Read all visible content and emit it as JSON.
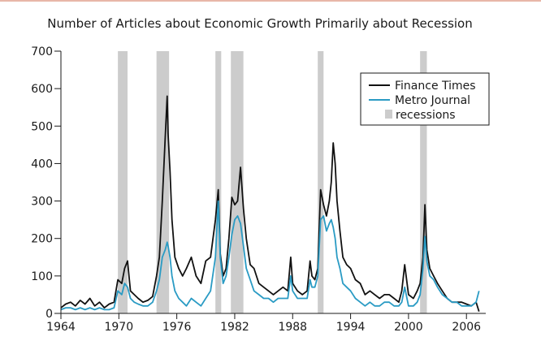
{
  "chart_data": {
    "type": "line",
    "title": "Number of Articles about Economic Growth Primarily about Recession",
    "xlabel": "",
    "ylabel": "",
    "xlim": [
      1964,
      2008
    ],
    "ylim": [
      0,
      700
    ],
    "x_ticks": [
      1964,
      1970,
      1976,
      1982,
      1988,
      1994,
      2000,
      2006
    ],
    "y_ticks": [
      0,
      100,
      200,
      300,
      400,
      500,
      600,
      700
    ],
    "grid": false,
    "legend_position": "top-right",
    "legend": [
      "Finance Times",
      "Metro Journal",
      "recessions"
    ],
    "recessions": [
      [
        1969.9,
        1970.9
      ],
      [
        1973.9,
        1975.2
      ],
      [
        1980.0,
        1980.6
      ],
      [
        1981.6,
        1982.9
      ],
      [
        1990.6,
        1991.2
      ],
      [
        2001.2,
        2001.9
      ]
    ],
    "recession_color": "#cccccc",
    "series": [
      {
        "name": "Finance Times",
        "color": "#111111",
        "x": [
          1964.0,
          1964.5,
          1965.0,
          1965.5,
          1966.0,
          1966.5,
          1967.0,
          1967.5,
          1968.0,
          1968.5,
          1969.0,
          1969.5,
          1969.9,
          1970.3,
          1970.6,
          1970.9,
          1971.2,
          1971.6,
          1972.0,
          1972.5,
          1973.0,
          1973.5,
          1973.9,
          1974.2,
          1974.5,
          1974.8,
          1975.0,
          1975.1,
          1975.3,
          1975.5,
          1975.8,
          1976.2,
          1976.6,
          1977.0,
          1977.5,
          1978.0,
          1978.5,
          1979.0,
          1979.5,
          1980.0,
          1980.3,
          1980.5,
          1980.8,
          1981.1,
          1981.4,
          1981.7,
          1982.0,
          1982.3,
          1982.6,
          1982.9,
          1983.2,
          1983.6,
          1984.0,
          1984.5,
          1985.0,
          1985.5,
          1986.0,
          1986.5,
          1987.0,
          1987.5,
          1987.8,
          1988.0,
          1988.5,
          1989.0,
          1989.5,
          1989.8,
          1990.0,
          1990.3,
          1990.6,
          1990.9,
          1991.2,
          1991.5,
          1991.8,
          1992.0,
          1992.2,
          1992.4,
          1992.6,
          1992.9,
          1993.2,
          1993.6,
          1994.0,
          1994.5,
          1995.0,
          1995.5,
          1996.0,
          1996.5,
          1997.0,
          1997.5,
          1998.0,
          1998.5,
          1999.0,
          1999.3,
          1999.6,
          2000.0,
          2000.5,
          2000.9,
          2001.2,
          2001.5,
          2001.7,
          2001.9,
          2002.2,
          2002.6,
          2003.0,
          2003.5,
          2004.0,
          2004.5,
          2005.0,
          2005.5,
          2006.0,
          2006.5,
          2007.0,
          2007.3
        ],
        "values": [
          15,
          25,
          30,
          20,
          35,
          25,
          40,
          20,
          30,
          15,
          25,
          30,
          90,
          80,
          120,
          140,
          60,
          50,
          40,
          30,
          35,
          45,
          100,
          150,
          300,
          470,
          580,
          480,
          380,
          250,
          150,
          120,
          100,
          120,
          150,
          100,
          80,
          140,
          150,
          250,
          330,
          160,
          100,
          120,
          200,
          310,
          290,
          300,
          390,
          280,
          200,
          130,
          120,
          80,
          70,
          60,
          50,
          60,
          70,
          60,
          150,
          80,
          60,
          50,
          60,
          140,
          100,
          90,
          120,
          330,
          290,
          260,
          300,
          350,
          455,
          400,
          300,
          220,
          150,
          130,
          120,
          90,
          80,
          50,
          60,
          50,
          40,
          50,
          50,
          40,
          30,
          60,
          130,
          50,
          40,
          60,
          80,
          150,
          290,
          170,
          120,
          100,
          80,
          60,
          40,
          30,
          30,
          30,
          25,
          20,
          30,
          5
        ]
      },
      {
        "name": "Metro Journal",
        "color": "#2a9bc4",
        "x": [
          1964.0,
          1964.5,
          1965.0,
          1965.5,
          1966.0,
          1966.5,
          1967.0,
          1967.5,
          1968.0,
          1968.5,
          1969.0,
          1969.5,
          1969.9,
          1970.3,
          1970.6,
          1970.9,
          1971.2,
          1971.6,
          1972.0,
          1972.5,
          1973.0,
          1973.5,
          1973.9,
          1974.2,
          1974.5,
          1974.8,
          1975.0,
          1975.1,
          1975.3,
          1975.5,
          1975.8,
          1976.2,
          1976.6,
          1977.0,
          1977.5,
          1978.0,
          1978.5,
          1979.0,
          1979.5,
          1980.0,
          1980.3,
          1980.5,
          1980.8,
          1981.1,
          1981.4,
          1981.7,
          1982.0,
          1982.3,
          1982.6,
          1982.9,
          1983.2,
          1983.6,
          1984.0,
          1984.5,
          1985.0,
          1985.5,
          1986.0,
          1986.5,
          1987.0,
          1987.5,
          1987.8,
          1988.0,
          1988.5,
          1989.0,
          1989.5,
          1989.8,
          1990.0,
          1990.3,
          1990.6,
          1990.9,
          1991.2,
          1991.5,
          1991.8,
          1992.0,
          1992.2,
          1992.4,
          1992.6,
          1992.9,
          1993.2,
          1993.6,
          1994.0,
          1994.5,
          1995.0,
          1995.5,
          1996.0,
          1996.5,
          1997.0,
          1997.5,
          1998.0,
          1998.5,
          1999.0,
          1999.3,
          1999.6,
          2000.0,
          2000.5,
          2000.9,
          2001.2,
          2001.5,
          2001.7,
          2001.9,
          2002.2,
          2002.6,
          2003.0,
          2003.5,
          2004.0,
          2004.5,
          2005.0,
          2005.5,
          2006.0,
          2006.5,
          2007.0,
          2007.3
        ],
        "values": [
          10,
          15,
          15,
          10,
          15,
          10,
          15,
          10,
          15,
          10,
          10,
          15,
          60,
          50,
          80,
          70,
          40,
          30,
          25,
          20,
          20,
          30,
          60,
          90,
          150,
          170,
          190,
          180,
          150,
          100,
          60,
          40,
          30,
          20,
          40,
          30,
          20,
          40,
          60,
          150,
          300,
          150,
          80,
          100,
          150,
          210,
          250,
          260,
          240,
          180,
          120,
          90,
          60,
          50,
          40,
          40,
          30,
          40,
          40,
          40,
          100,
          60,
          40,
          40,
          40,
          90,
          70,
          70,
          100,
          250,
          260,
          220,
          240,
          250,
          230,
          200,
          150,
          120,
          80,
          70,
          60,
          40,
          30,
          20,
          30,
          20,
          20,
          30,
          30,
          20,
          20,
          30,
          70,
          20,
          20,
          30,
          50,
          120,
          205,
          140,
          100,
          90,
          70,
          50,
          40,
          30,
          30,
          20,
          20,
          20,
          30,
          60
        ]
      }
    ]
  }
}
